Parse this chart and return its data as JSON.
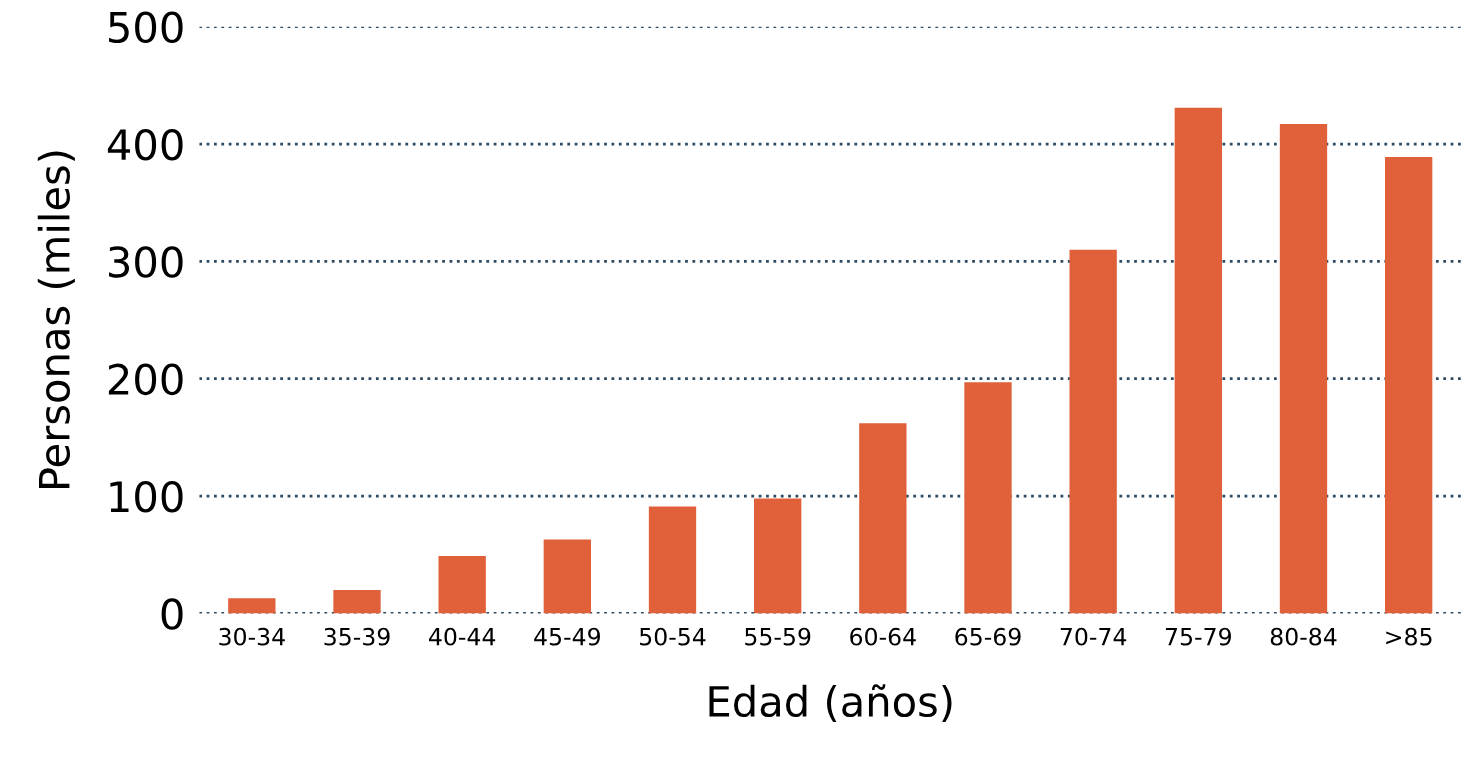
{
  "chart_data": {
    "type": "bar",
    "xlabel": "Edad (años)",
    "ylabel": "Personas (miles)",
    "categories": [
      "30-34",
      "35-39",
      "40-44",
      "45-49",
      "50-54",
      "55-59",
      "60-64",
      "65-69",
      "70-74",
      "75-79",
      "80-84",
      ">85"
    ],
    "values": [
      13,
      20,
      49,
      63,
      91,
      98,
      162,
      197,
      310,
      431,
      417,
      389
    ],
    "color": "#e0603a",
    "ylim": [
      0,
      500
    ],
    "yticks": [
      0,
      100,
      200,
      300,
      400,
      500
    ],
    "grid": "y",
    "line_style": "dotted"
  }
}
